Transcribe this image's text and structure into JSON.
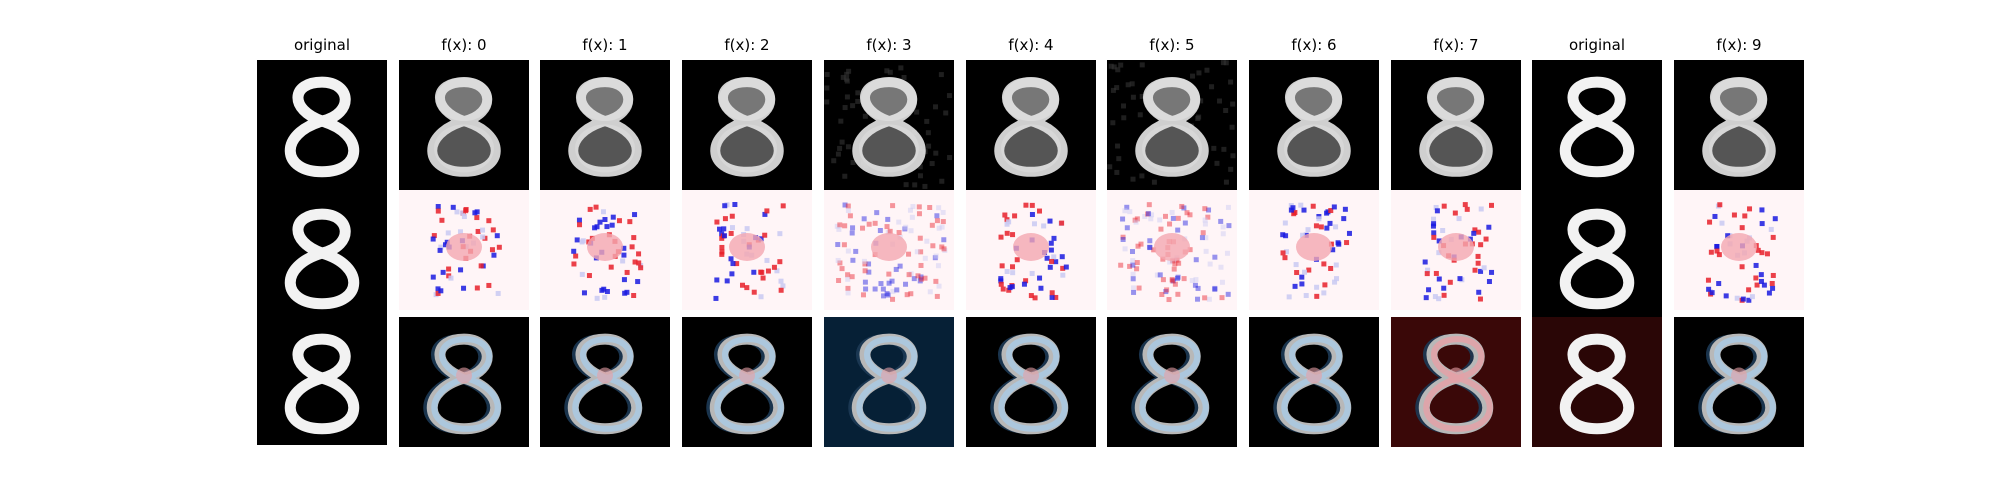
{
  "figure": {
    "columns": [
      {
        "title": "original",
        "kind": "original",
        "bg_tint": null
      },
      {
        "title": "f(x): 0",
        "kind": "blob-a",
        "bg_tint": null
      },
      {
        "title": "f(x): 1",
        "kind": "blob-b",
        "bg_tint": null
      },
      {
        "title": "f(x): 2",
        "kind": "blob-c",
        "bg_tint": null
      },
      {
        "title": "f(x): 3",
        "kind": "noisy",
        "bg_tint": "#062036"
      },
      {
        "title": "f(x): 4",
        "kind": "blob-d",
        "bg_tint": null
      },
      {
        "title": "f(x): 5",
        "kind": "noisy",
        "bg_tint": null
      },
      {
        "title": "f(x): 6",
        "kind": "blob-e",
        "bg_tint": null
      },
      {
        "title": "f(x): 7",
        "kind": "blob-f",
        "bg_tint": "#3a0808"
      },
      {
        "title": "original",
        "kind": "original",
        "bg_tint": "#2a0606"
      },
      {
        "title": "f(x): 9",
        "kind": "blob-g",
        "bg_tint": null
      }
    ],
    "row_types": [
      "reconstruction",
      "difference-map",
      "overlay"
    ],
    "colors": {
      "digit": "#f2f2f2",
      "panel_bg": "#000000",
      "diff_bg": "#fff5f7",
      "pos": "#e8202a",
      "neg": "#1a1ae0",
      "overlay_blue": "#a9cbe6",
      "overlay_red": "#e6a0a6"
    }
  }
}
